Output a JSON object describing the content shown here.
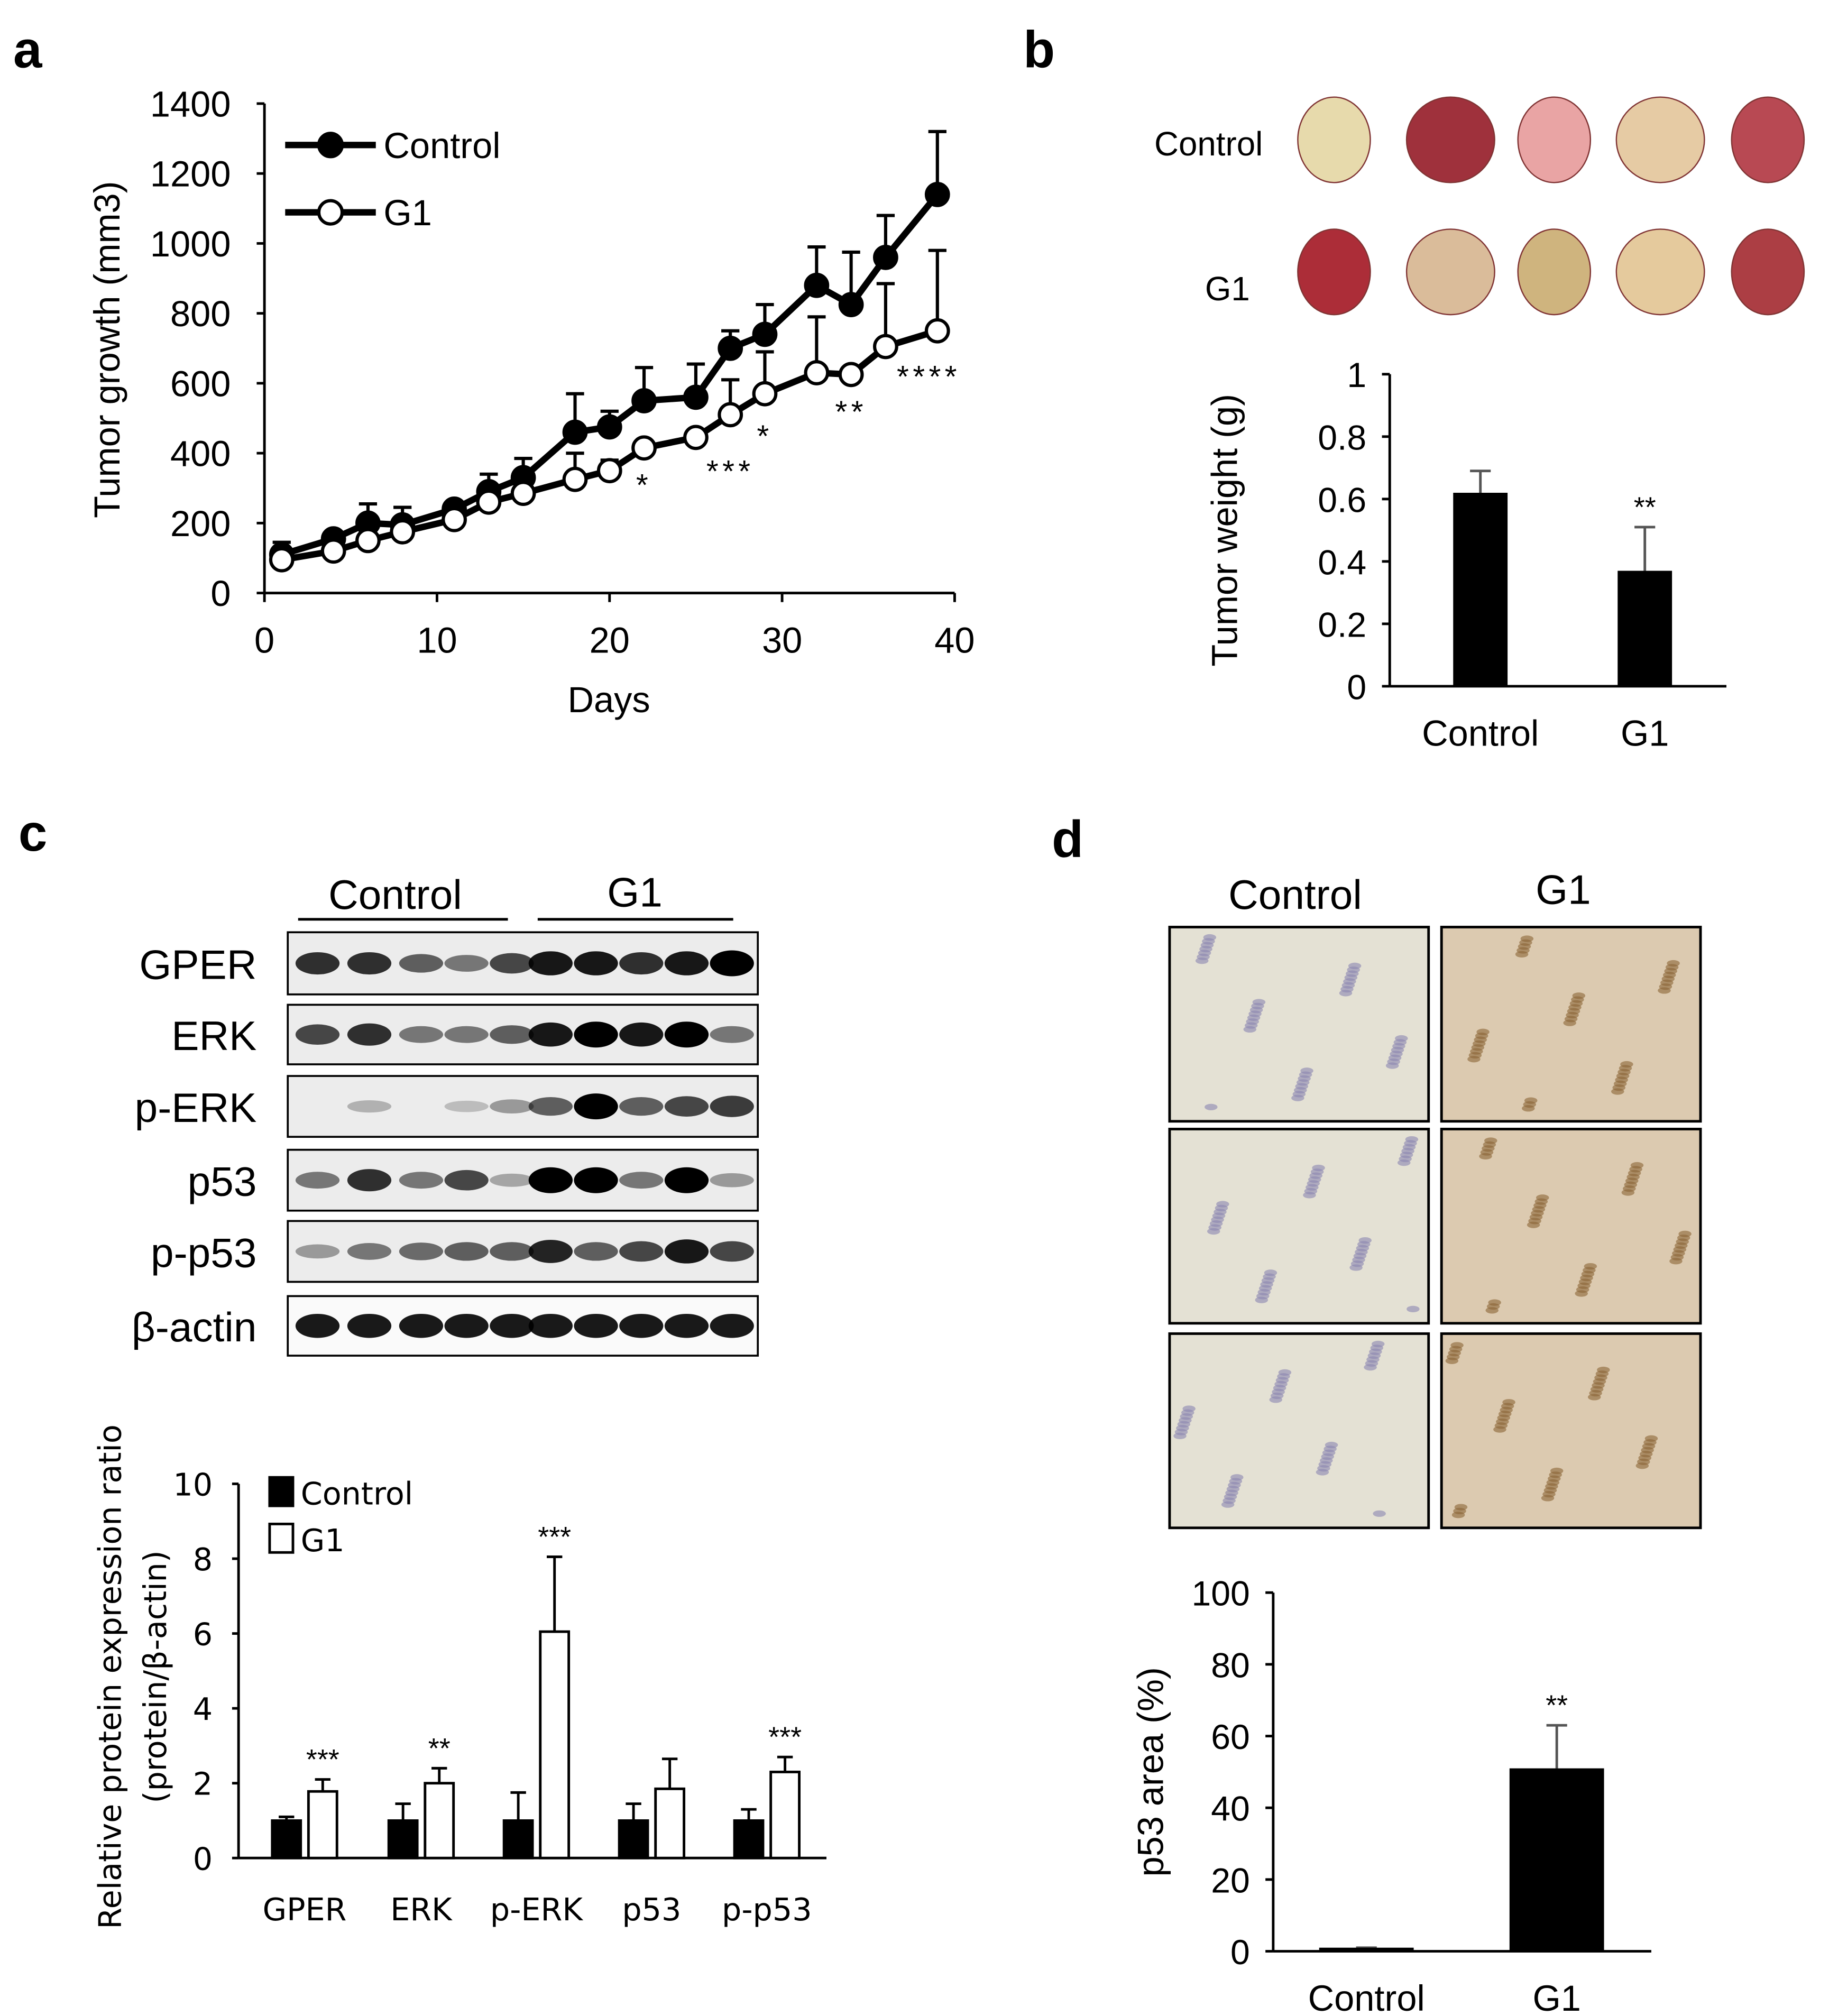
{
  "panel_labels": [
    "a",
    "b",
    "c",
    "d"
  ],
  "chart_data": [
    {
      "id": "a",
      "type": "line",
      "xlabel": "Days",
      "ylabel": "Tumor growth (mm3)",
      "xlim": [
        0,
        40
      ],
      "ylim": [
        0,
        1400
      ],
      "xticks": [
        0,
        10,
        20,
        30,
        40
      ],
      "yticks": [
        0,
        200,
        400,
        600,
        800,
        1000,
        1200,
        1400
      ],
      "legend_position": "top-left",
      "x": [
        1,
        4,
        6,
        8,
        11,
        13,
        15,
        18,
        20,
        22,
        25,
        27,
        29,
        32,
        34,
        36,
        39
      ],
      "series": [
        {
          "name": "Control",
          "marker": "filled",
          "values": [
            110,
            155,
            200,
            195,
            240,
            290,
            330,
            460,
            475,
            550,
            560,
            700,
            740,
            880,
            825,
            960,
            1140
          ],
          "err_top": [
            145,
            160,
            255,
            245,
            250,
            340,
            385,
            570,
            520,
            645,
            655,
            750,
            825,
            990,
            975,
            1080,
            1320
          ]
        },
        {
          "name": "G1",
          "marker": "open",
          "values": [
            95,
            120,
            150,
            175,
            210,
            260,
            285,
            325,
            350,
            415,
            445,
            510,
            570,
            630,
            625,
            705,
            750
          ],
          "err_top": [
            95,
            120,
            150,
            175,
            210,
            260,
            285,
            400,
            380,
            415,
            445,
            610,
            690,
            790,
            625,
            885,
            980
          ]
        }
      ],
      "annotations": [
        {
          "x": 22,
          "y": 330,
          "text": "*"
        },
        {
          "x": 27,
          "y": 370,
          "text": "***"
        },
        {
          "x": 29,
          "y": 470,
          "text": "*"
        },
        {
          "x": 34,
          "y": 540,
          "text": "**"
        },
        {
          "x": 38.5,
          "y": 640,
          "text": "****"
        }
      ]
    },
    {
      "id": "b",
      "type": "bar",
      "ylabel": "Tumor weight (g)",
      "ylim": [
        0,
        1
      ],
      "yticks": [
        "0",
        "0.2",
        "0.4",
        "0.6",
        "0.8",
        "1"
      ],
      "categories": [
        "Control",
        "G1"
      ],
      "values": [
        0.62,
        0.37
      ],
      "err_top": [
        0.69,
        0.51
      ],
      "annotations": [
        "",
        "**"
      ]
    },
    {
      "id": "c",
      "type": "bar",
      "ylabel": "Relative protein expression ratio",
      "ylabel2": "(protein/β-actin)",
      "ylim": [
        0,
        10
      ],
      "yticks": [
        0,
        2,
        4,
        6,
        8,
        10
      ],
      "categories": [
        "GPER",
        "ERK",
        "p-ERK",
        "p53",
        "p-p53"
      ],
      "legend_position": "top-left",
      "series": [
        {
          "name": "Control",
          "fill": "#000000",
          "values": [
            1,
            1,
            1,
            1,
            1
          ],
          "err_top": [
            1.1,
            1.45,
            1.75,
            1.45,
            1.3
          ]
        },
        {
          "name": "G1",
          "fill": "#ffffff",
          "values": [
            1.78,
            2.0,
            6.05,
            1.85,
            2.3
          ],
          "err_top": [
            2.1,
            2.4,
            8.05,
            2.65,
            2.7
          ]
        }
      ],
      "annotations": [
        "***",
        "**",
        "***",
        "",
        "***"
      ]
    },
    {
      "id": "d",
      "type": "bar",
      "ylabel": "p53 area (%)",
      "ylim": [
        0,
        100
      ],
      "yticks": [
        0,
        20,
        40,
        60,
        80,
        100
      ],
      "categories": [
        "Control",
        "G1"
      ],
      "values": [
        1,
        51
      ],
      "err_top": [
        1,
        63
      ],
      "annotations": [
        "",
        "**"
      ]
    }
  ],
  "tumor_photos": {
    "rows": [
      "Control",
      "G1"
    ]
  },
  "western_blot": {
    "groups": [
      "Control",
      "G1"
    ],
    "rows": [
      "GPER",
      "ERK",
      "p-ERK",
      "p53",
      "p-p53",
      "β-actin"
    ]
  },
  "ihc": {
    "columns": [
      "Control",
      "G1"
    ]
  }
}
